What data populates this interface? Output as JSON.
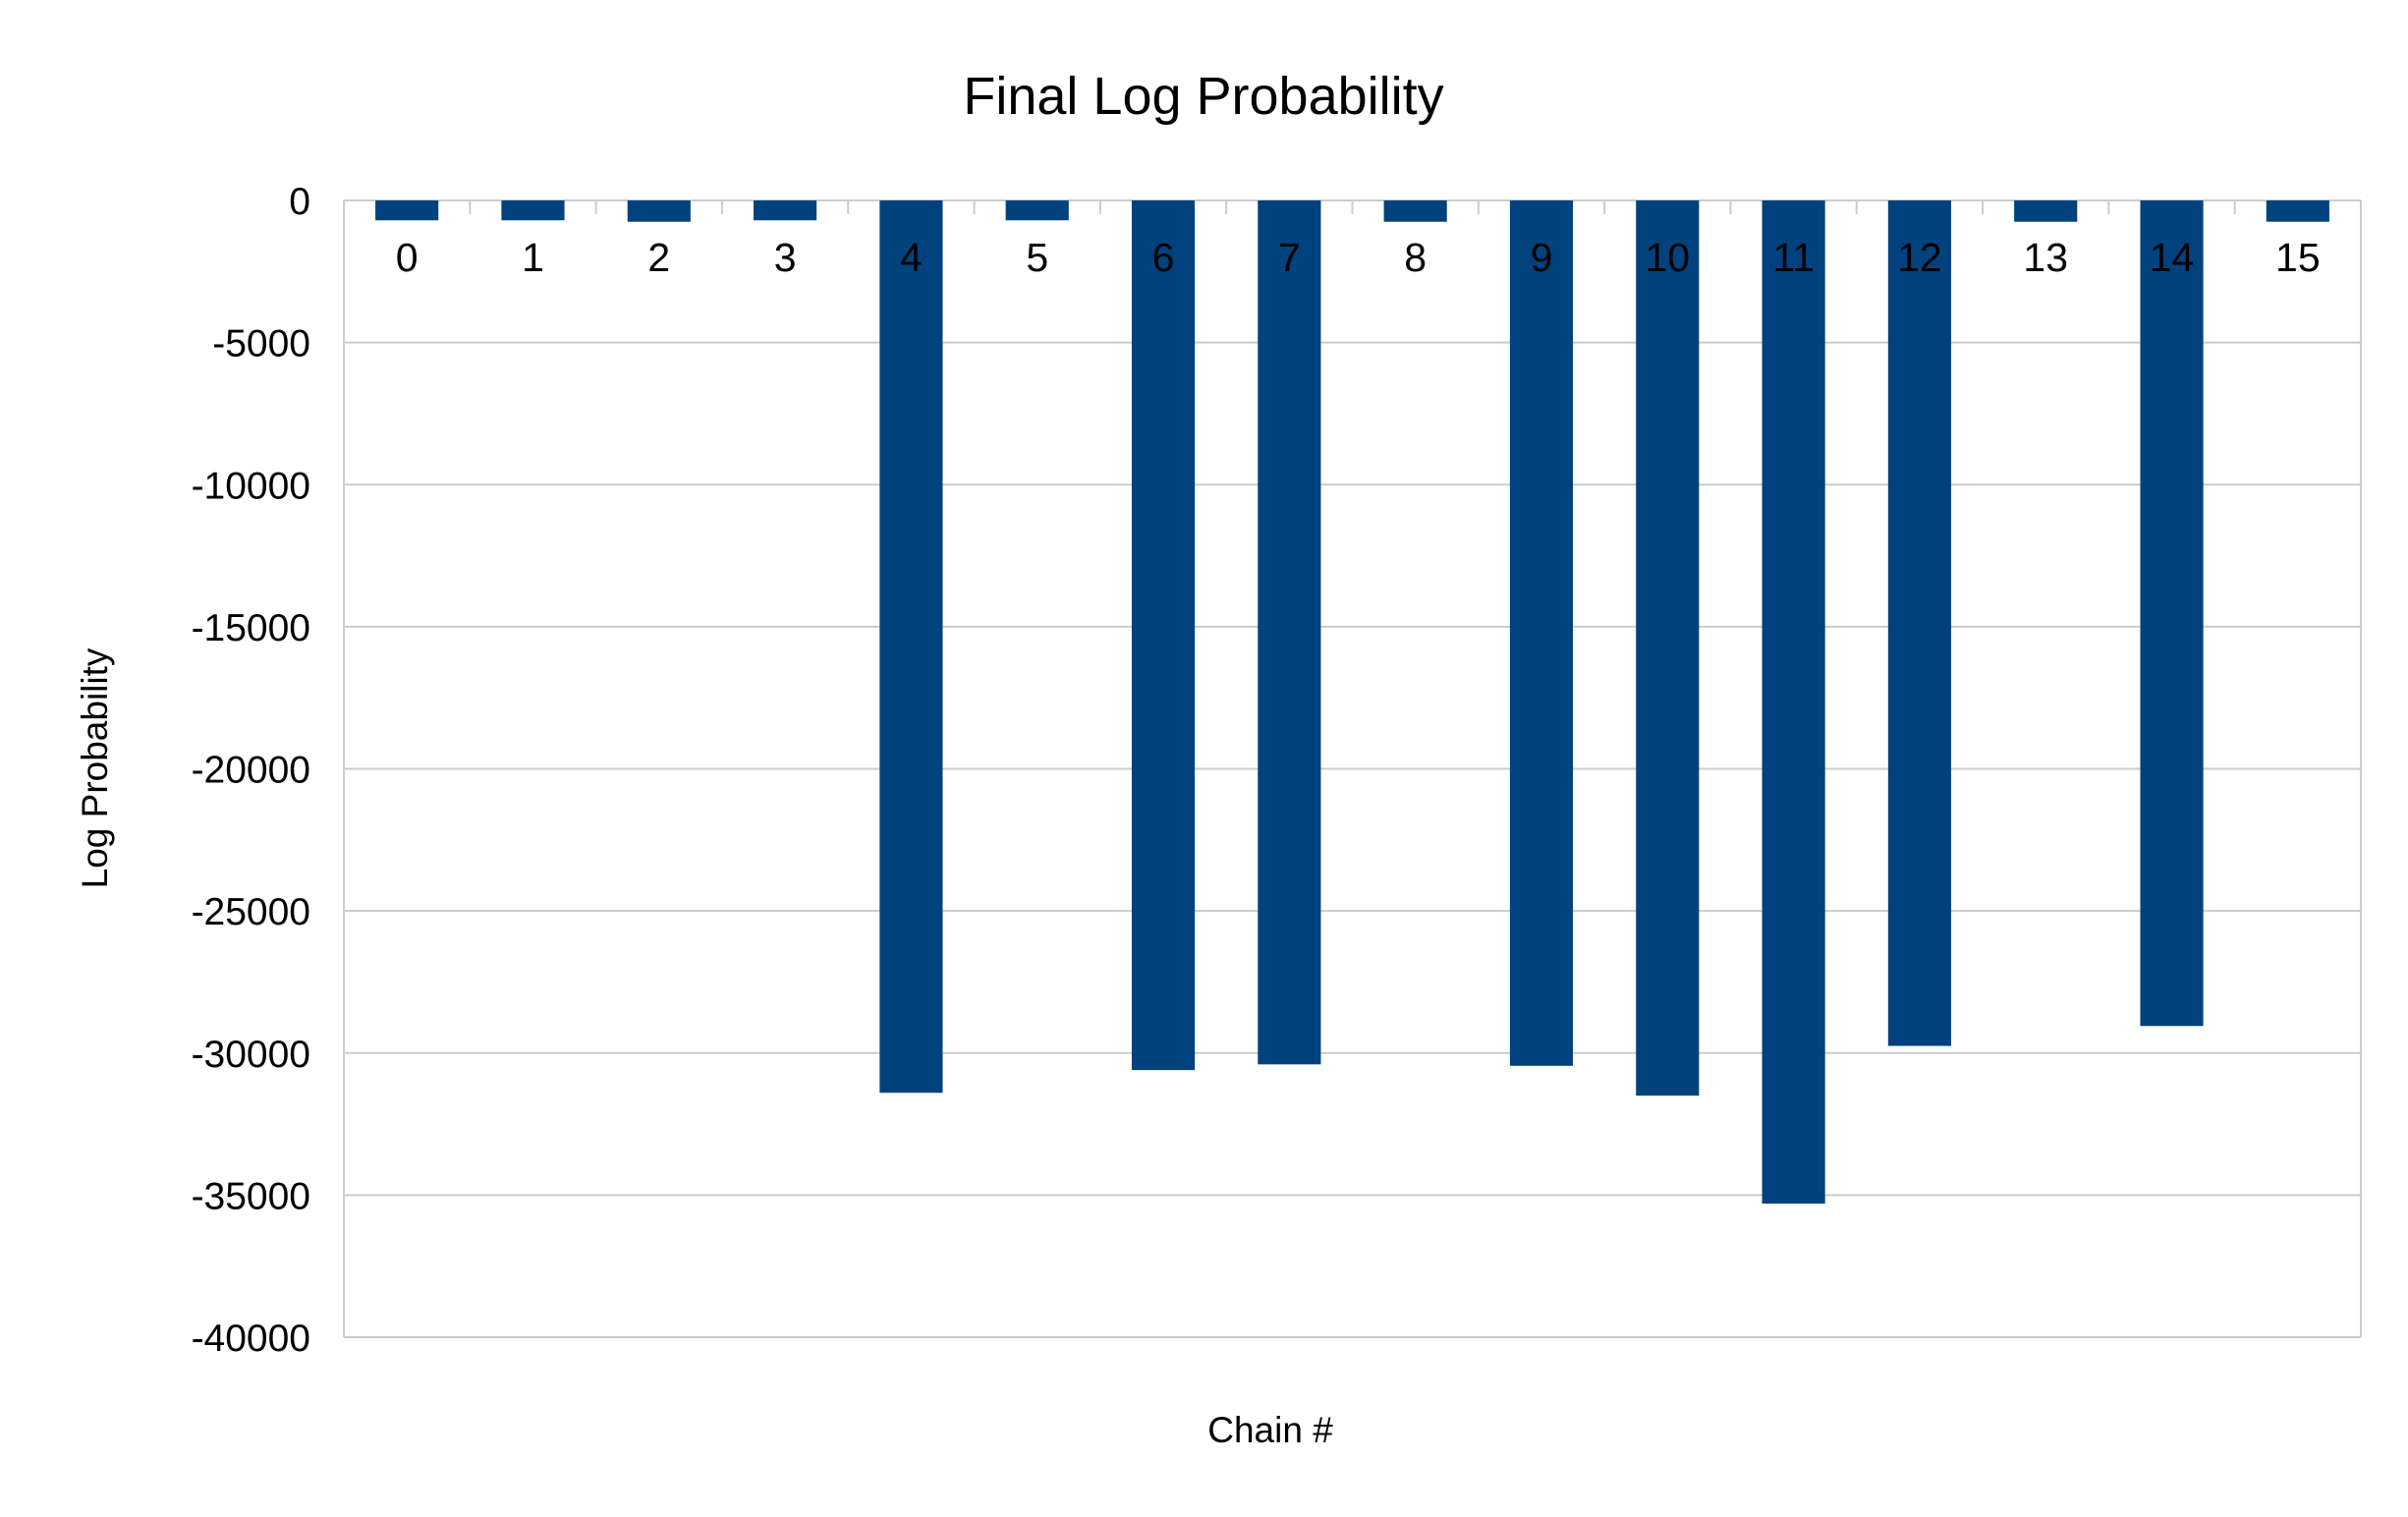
{
  "chart_data": {
    "type": "bar",
    "title": "Final Log Probability",
    "xlabel": "Chain #",
    "ylabel": "Log Probability",
    "categories": [
      "0",
      "1",
      "2",
      "3",
      "4",
      "5",
      "6",
      "7",
      "8",
      "9",
      "10",
      "11",
      "12",
      "13",
      "14",
      "15"
    ],
    "values": [
      -700,
      -700,
      -750,
      -700,
      -31400,
      -700,
      -30600,
      -30400,
      -750,
      -30450,
      -31500,
      -35300,
      -29750,
      -750,
      -29050,
      -750
    ],
    "ylim": [
      -40000,
      0
    ],
    "yticks": [
      "0",
      "-5000",
      "-10000",
      "-15000",
      "-20000",
      "-25000",
      "-30000",
      "-35000",
      "-40000"
    ],
    "ytick_values": [
      0,
      -5000,
      -10000,
      -15000,
      -20000,
      -25000,
      -30000,
      -35000,
      -40000
    ],
    "grid": true,
    "legend": "none",
    "bar_color": "#00427e",
    "grid_color": "#cccccc"
  }
}
